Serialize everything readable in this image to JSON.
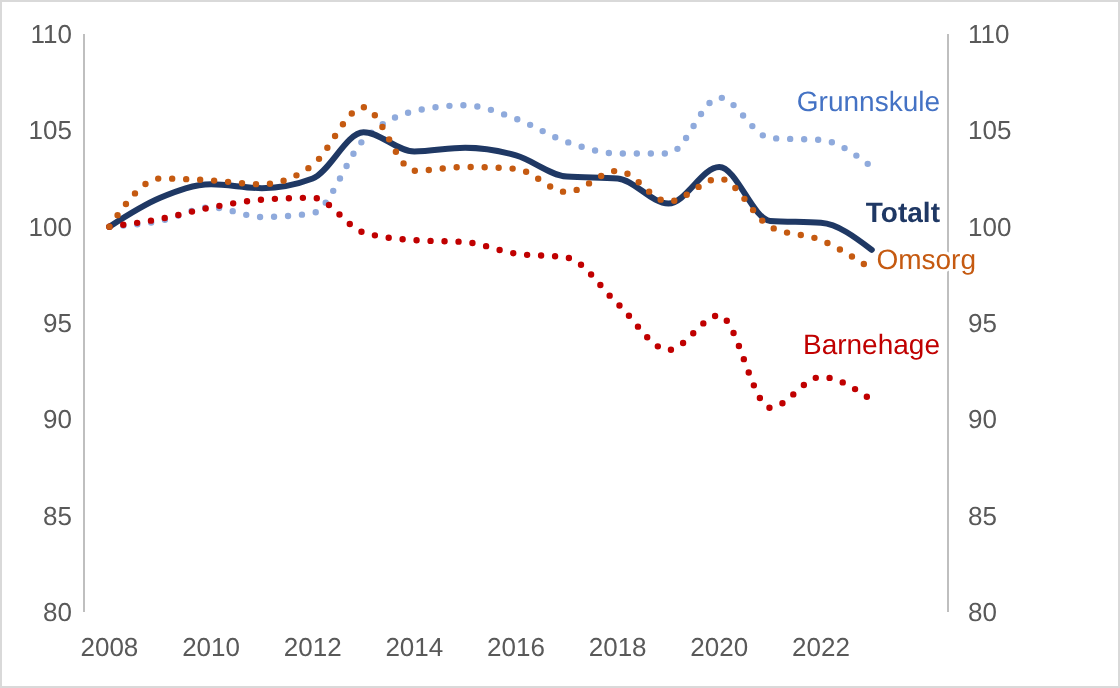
{
  "chart_data": {
    "type": "line",
    "x": [
      2008,
      2009,
      2010,
      2011,
      2012,
      2013,
      2014,
      2015,
      2016,
      2017,
      2018,
      2019,
      2020,
      2021,
      2022,
      2023
    ],
    "series": [
      {
        "name": "Grunnskule",
        "color": "#8faadc",
        "line_style": "dotted",
        "values": [
          100,
          100.3,
          101.0,
          100.5,
          100.7,
          104.5,
          106.0,
          106.3,
          105.6,
          104.4,
          103.8,
          103.8,
          106.7,
          104.6,
          104.5,
          103.1
        ]
      },
      {
        "name": "Totalt",
        "color": "#1f3864",
        "line_style": "solid",
        "values": [
          100,
          101.5,
          102.2,
          102.0,
          102.5,
          104.9,
          103.9,
          104.1,
          103.7,
          102.6,
          102.5,
          101.2,
          103.1,
          100.3,
          100.2,
          98.8
        ]
      },
      {
        "name": "Barnehage",
        "color": "#c00000",
        "line_style": "dotted",
        "values": [
          100,
          100.4,
          101.0,
          101.4,
          101.5,
          99.7,
          99.3,
          99.2,
          98.6,
          98.4,
          96.0,
          93.6,
          95.4,
          90.6,
          92.2,
          91.0
        ]
      },
      {
        "name": "Omsorg",
        "color": "#c55a11",
        "line_style": "dotted",
        "values": [
          100,
          102.5,
          102.4,
          102.2,
          103.2,
          106.2,
          102.9,
          103.1,
          103.0,
          101.8,
          102.9,
          101.3,
          102.5,
          100.0,
          99.3,
          97.8
        ]
      }
    ],
    "xlim": [
      2007.5,
      2024.5
    ],
    "xticks": [
      2008,
      2010,
      2012,
      2014,
      2016,
      2018,
      2020,
      2022
    ],
    "ylim": [
      80,
      110
    ],
    "yticks": [
      80,
      85,
      90,
      95,
      100,
      105,
      110
    ],
    "y2lim": [
      80,
      110
    ],
    "y2ticks": [
      80,
      85,
      90,
      95,
      100,
      105,
      110
    ],
    "grid": false,
    "legend": false,
    "marker": "none"
  }
}
